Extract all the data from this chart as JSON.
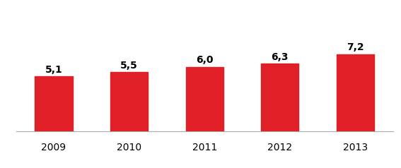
{
  "categories": [
    "2009",
    "2010",
    "2011",
    "2012",
    "2013"
  ],
  "values": [
    5.1,
    5.5,
    6.0,
    6.3,
    7.2
  ],
  "labels": [
    "5,1",
    "5,5",
    "6,0",
    "6,3",
    "7,2"
  ],
  "bar_color": "#e01f26",
  "background_color": "#ffffff",
  "ylim": [
    0,
    11.0
  ],
  "label_fontsize": 10,
  "tick_fontsize": 10,
  "bar_width": 0.5
}
